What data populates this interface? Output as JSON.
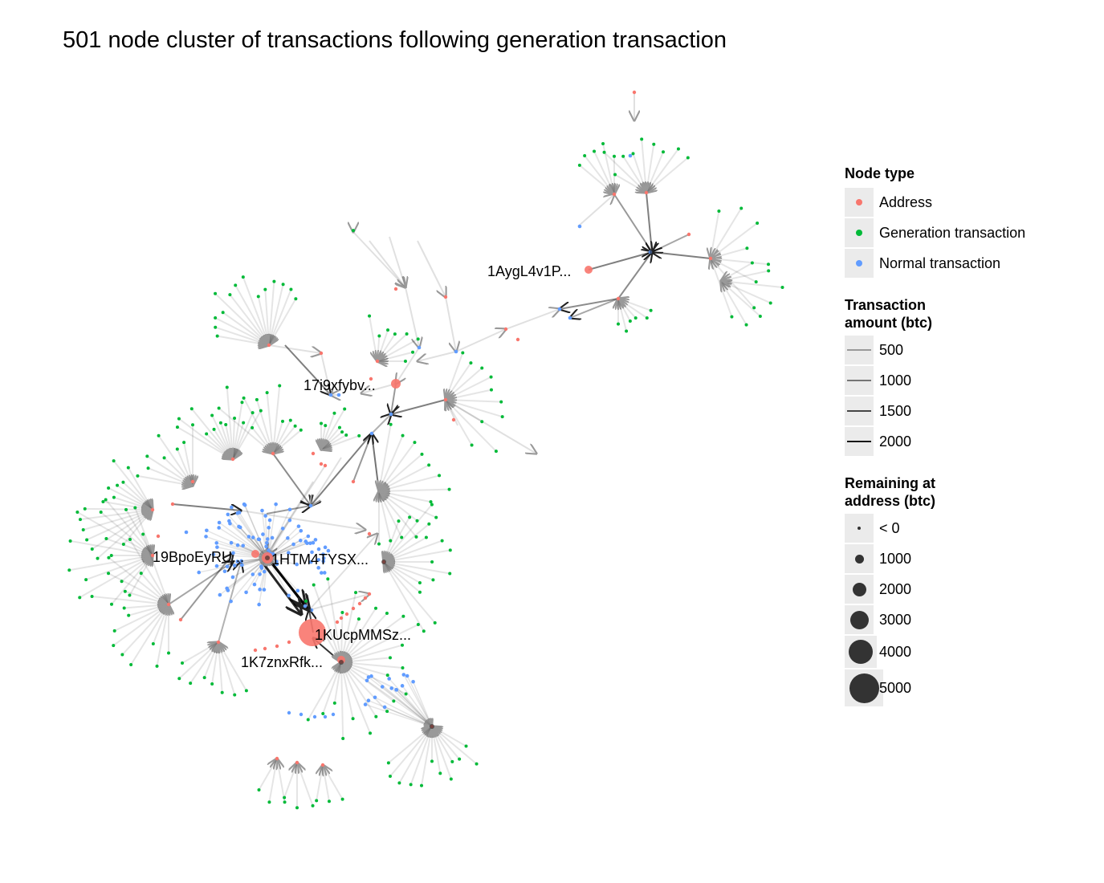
{
  "title": "501 node cluster of transactions following generation transaction",
  "colors": {
    "address": "#F8766D",
    "generation": "#00BA38",
    "normal": "#619CFF",
    "edge": "#000000"
  },
  "labels": {
    "aygl": "1AygL4v1P...",
    "i9xf": "17i9xfybv...",
    "bpoe": "19BpoEyRU...",
    "htm4": "1HTM4TYSX...",
    "kucp": "1KUcpMMSz...",
    "k7zn": "1K7znxRfk..."
  },
  "legend": {
    "node_type": {
      "title": "Node type",
      "items": [
        {
          "label": "Address",
          "color": "#F8766D"
        },
        {
          "label": "Generation transaction",
          "color": "#00BA38"
        },
        {
          "label": "Normal transaction",
          "color": "#619CFF"
        }
      ]
    },
    "amount": {
      "title": "Transaction\namount (btc)",
      "items": [
        {
          "label": "500",
          "opacity": 0.35
        },
        {
          "label": "1000",
          "opacity": 0.5
        },
        {
          "label": "1500",
          "opacity": 0.7
        },
        {
          "label": "2000",
          "opacity": 0.9
        }
      ]
    },
    "remaining": {
      "title": "Remaining at\naddress (btc)",
      "items": [
        {
          "label": "< 0",
          "level": 0
        },
        {
          "label": "1000",
          "level": 1
        },
        {
          "label": "2000",
          "level": 2
        },
        {
          "label": "3000",
          "level": 3
        },
        {
          "label": "4000",
          "level": 4
        },
        {
          "label": "5000",
          "level": 5
        }
      ]
    }
  }
}
